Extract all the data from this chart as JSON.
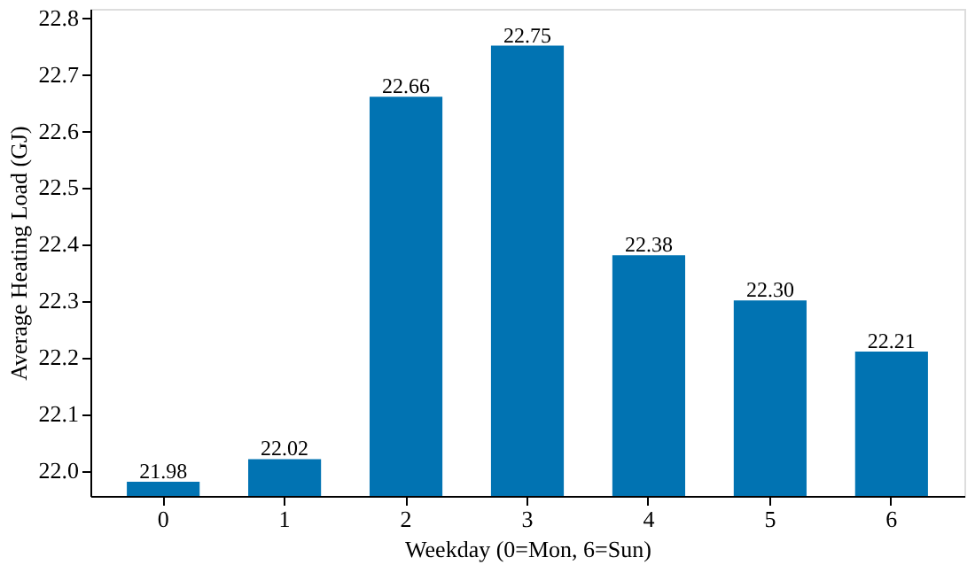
{
  "chart_data": {
    "type": "bar",
    "xlabel": "Weekday (0=Mon, 6=Sun)",
    "ylabel": "Average Heating Load (GJ)",
    "categories": [
      "0",
      "1",
      "2",
      "3",
      "4",
      "5",
      "6"
    ],
    "values": [
      21.98,
      22.02,
      22.66,
      22.75,
      22.38,
      22.3,
      22.21
    ],
    "value_labels": [
      "21.98",
      "22.02",
      "22.66",
      "22.75",
      "22.38",
      "22.30",
      "22.21"
    ],
    "color": "#0173b2",
    "ylim": [
      21.955,
      22.815
    ],
    "yticks": [
      {
        "value": 22.0,
        "label": "22.0"
      },
      22.1,
      22.2,
      22.3,
      22.4,
      22.5,
      22.6,
      22.7,
      {
        "value": 22.8,
        "label": "22.8"
      }
    ],
    "grid": false
  }
}
